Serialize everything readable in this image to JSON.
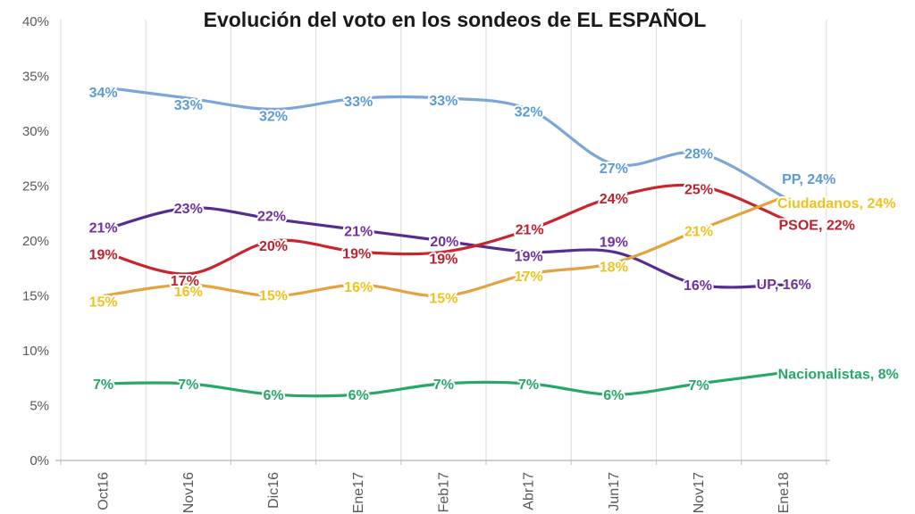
{
  "title": "Evolución del voto en los sondeos de EL ESPAÑOL",
  "chart_data": {
    "type": "line",
    "title": "Evolución del voto en los sondeos de EL ESPAÑOL",
    "x": [
      "Oct16",
      "Nov16",
      "Dic16",
      "Ene17",
      "Feb17",
      "Abr17",
      "Jun17",
      "Nov17",
      "Ene18"
    ],
    "y_ticks": [
      "0%",
      "5%",
      "10%",
      "15%",
      "20%",
      "25%",
      "30%",
      "35%",
      "40%"
    ],
    "ylim": [
      0,
      40
    ],
    "y_step": 5,
    "grid": "vertical-only",
    "legend_position": "end-of-line",
    "data_labels": true,
    "label_suffix": "%",
    "series": [
      {
        "name": "PP",
        "end_label": "PP, 24%",
        "line_color": "#7CA6D8",
        "label_color": "#5B9BD5",
        "values": [
          34,
          33,
          32,
          33,
          33,
          32,
          27,
          28,
          24
        ]
      },
      {
        "name": "Ciudadanos",
        "end_label": "Ciudadanos, 24%",
        "line_color": "#E2A441",
        "label_color": "#EFC21C",
        "values": [
          15,
          16,
          15,
          16,
          15,
          17,
          18,
          21,
          24
        ]
      },
      {
        "name": "PSOE",
        "end_label": "PSOE, 22%",
        "line_color": "#C9252D",
        "label_color": "#B8232E",
        "values": [
          19,
          17,
          20,
          19,
          19,
          21,
          24,
          25,
          22
        ]
      },
      {
        "name": "UP",
        "end_label": "UP, 16%",
        "line_color": "#572C8F",
        "label_color": "#7030A0",
        "values": [
          21,
          23,
          22,
          21,
          20,
          19,
          19,
          16,
          16
        ]
      },
      {
        "name": "Nacionalistas",
        "end_label": "Nacionalistas, 8%",
        "line_color": "#27A866",
        "label_color": "#27A866",
        "values": [
          7,
          7,
          6,
          6,
          7,
          7,
          6,
          7,
          8
        ]
      }
    ]
  }
}
